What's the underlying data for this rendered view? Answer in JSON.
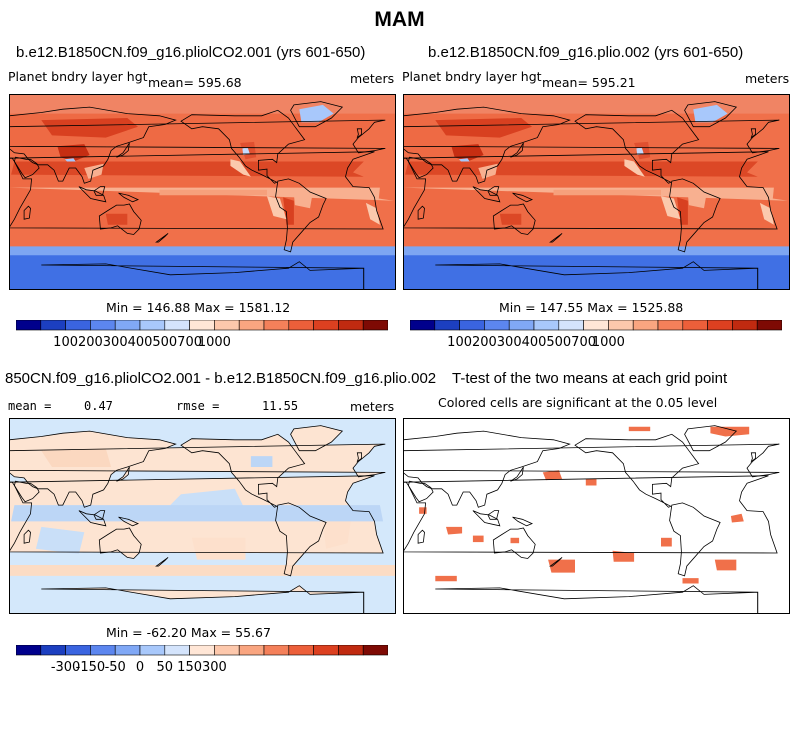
{
  "page": {
    "title": "MAM"
  },
  "colors": {
    "ocean_warm": "#f0704a",
    "land_hot": "#d63a1a",
    "land_mid": "#f4a07c",
    "polar_cold": "#3f6fe0",
    "anomaly_pale_blue": "#d4e8fb",
    "anomaly_pale_peach": "#fde4d2",
    "significant": "#f0704a",
    "coast": "#000000"
  },
  "chart_data": [
    {
      "type": "heatmap",
      "title": "b.e12.B1850CN.f09_g16.pliolCO2.001 (yrs 601-650)",
      "variable": "Planet bndry layer hgt",
      "mean_text": "mean= 595.68",
      "units": "meters",
      "stats_text": "Min = 146.88  Max = 1581.12",
      "min": 146.88,
      "max": 1581.12,
      "mean": 595.68,
      "colorbar": {
        "tick_labels": [
          "100",
          "200",
          "300",
          "400",
          "500",
          "700",
          "1000"
        ],
        "colors": [
          "#00008c",
          "#1c3fc0",
          "#3a64e0",
          "#5c86ef",
          "#80a8f6",
          "#a8c8fb",
          "#d4e4fc",
          "#ffe6d6",
          "#fdc8ac",
          "#f9a580",
          "#f4805a",
          "#ec5f3a",
          "#dc4020",
          "#c02a10",
          "#7e0a04"
        ]
      }
    },
    {
      "type": "heatmap",
      "title": "b.e12.B1850CN.f09_g16.plio.002 (yrs 601-650)",
      "variable": "Planet bndry layer hgt",
      "mean_text": "mean= 595.21",
      "units": "meters",
      "stats_text": "Min = 147.55  Max = 1525.88",
      "min": 147.55,
      "max": 1525.88,
      "mean": 595.21,
      "colorbar": {
        "tick_labels": [
          "100",
          "200",
          "300",
          "400",
          "500",
          "700",
          "1000"
        ],
        "colors": [
          "#00008c",
          "#1c3fc0",
          "#3a64e0",
          "#5c86ef",
          "#80a8f6",
          "#a8c8fb",
          "#d4e4fc",
          "#ffe6d6",
          "#fdc8ac",
          "#f9a580",
          "#f4805a",
          "#ec5f3a",
          "#dc4020",
          "#c02a10",
          "#7e0a04"
        ]
      }
    },
    {
      "type": "heatmap",
      "title": "850CN.f09_g16.pliolCO2.001 - b.e12.B1850CN.f09_g16.plio.002",
      "mean_label": "mean =",
      "mean_value": "0.47",
      "rmse_label": "rmse =",
      "rmse_value": "11.55",
      "units": "meters",
      "stats_text": "Min = -62.20  Max =  55.67",
      "min": -62.2,
      "max": 55.67,
      "mean": 0.47,
      "rmse": 11.55,
      "colorbar": {
        "tick_labels": [
          "-300",
          "-150",
          "-50",
          "0",
          "50",
          "150",
          "300"
        ],
        "colors": [
          "#00008c",
          "#1c3fc0",
          "#3a64e0",
          "#5c86ef",
          "#80a8f6",
          "#a8c8fb",
          "#d4e4fc",
          "#ffe6d6",
          "#fdc8ac",
          "#f9a580",
          "#f4805a",
          "#ec5f3a",
          "#dc4020",
          "#c02a10",
          "#7e0a04"
        ]
      }
    },
    {
      "type": "heatmap",
      "title": "T-test of the two means at each grid point",
      "subtitle": "Colored cells are significant at the 0.05 level"
    }
  ]
}
